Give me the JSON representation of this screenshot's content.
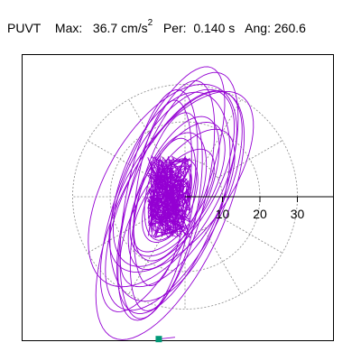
{
  "header": {
    "station": "PUVT",
    "max_label": "Max:",
    "max_value": "36.7",
    "max_unit": "cm/s",
    "max_unit_exp": "2",
    "per_label": "Per:",
    "per_value": "0.140 s",
    "ang_label": "Ang:",
    "ang_value": "260.6"
  },
  "chart_data": {
    "type": "scatter",
    "title": "",
    "xlabel": "",
    "ylabel": "",
    "polar_rings": [
      10,
      20,
      30
    ],
    "ring_labels": [
      "10",
      "20",
      "30"
    ],
    "radial_spokes_deg": [
      0,
      30,
      60,
      90,
      120,
      150,
      180,
      210,
      240,
      270,
      300,
      330
    ],
    "orientation_deg": 260.6,
    "max_amplitude": 36.7,
    "ellipses": [
      {
        "a": 36.0,
        "b": 14.0,
        "tilt": 65,
        "cx": -4.0,
        "cy": -5.0
      },
      {
        "a": 34.0,
        "b": 12.0,
        "tilt": 70,
        "cx": -2.0,
        "cy": 1.0
      },
      {
        "a": 30.0,
        "b": 15.0,
        "tilt": 60,
        "cx": -6.0,
        "cy": 3.0
      },
      {
        "a": 33.0,
        "b": 10.0,
        "tilt": 75,
        "cx": -5.0,
        "cy": -1.0
      },
      {
        "a": 28.0,
        "b": 13.0,
        "tilt": 55,
        "cx": -1.0,
        "cy": 4.0
      },
      {
        "a": 31.0,
        "b": 9.0,
        "tilt": 80,
        "cx": -7.0,
        "cy": -2.0
      },
      {
        "a": 26.0,
        "b": 12.0,
        "tilt": 62,
        "cx": -3.0,
        "cy": 5.0
      },
      {
        "a": 35.0,
        "b": 11.0,
        "tilt": 68,
        "cx": -6.0,
        "cy": 2.0
      },
      {
        "a": 24.0,
        "b": 10.0,
        "tilt": 58,
        "cx": -2.0,
        "cy": -3.0
      },
      {
        "a": 29.0,
        "b": 14.0,
        "tilt": 72,
        "cx": -4.0,
        "cy": 0.0
      },
      {
        "a": 22.0,
        "b": 9.0,
        "tilt": 66,
        "cx": -3.0,
        "cy": 1.0
      },
      {
        "a": 27.0,
        "b": 8.0,
        "tilt": 78,
        "cx": -5.0,
        "cy": -4.0
      },
      {
        "a": 20.0,
        "b": 9.0,
        "tilt": 60,
        "cx": -2.0,
        "cy": 2.0
      },
      {
        "a": 32.0,
        "b": 13.0,
        "tilt": 64,
        "cx": -3.0,
        "cy": -1.0
      },
      {
        "a": 18.0,
        "b": 8.0,
        "tilt": 70,
        "cx": -4.0,
        "cy": 0.0
      },
      {
        "a": 25.0,
        "b": 7.0,
        "tilt": 82,
        "cx": -6.0,
        "cy": 1.0
      },
      {
        "a": 16.0,
        "b": 7.0,
        "tilt": 55,
        "cx": -3.0,
        "cy": -1.0
      },
      {
        "a": 14.0,
        "b": 6.0,
        "tilt": 75,
        "cx": -4.0,
        "cy": 2.0
      },
      {
        "a": 12.0,
        "b": 6.0,
        "tilt": 65,
        "cx": -4.0,
        "cy": -1.0
      },
      {
        "a": 10.0,
        "b": 5.0,
        "tilt": 70,
        "cx": -4.0,
        "cy": 0.0
      },
      {
        "a": 8.0,
        "b": 4.0,
        "tilt": 60,
        "cx": -4.0,
        "cy": 1.0
      },
      {
        "a": 6.0,
        "b": 3.0,
        "tilt": 72,
        "cx": -4.0,
        "cy": 0.0
      },
      {
        "a": 5.0,
        "b": 3.0,
        "tilt": 50,
        "cx": -5.0,
        "cy": 0.0
      },
      {
        "a": 4.0,
        "b": 2.0,
        "tilt": 80,
        "cx": -4.0,
        "cy": -1.0
      },
      {
        "a": 3.0,
        "b": 2.0,
        "tilt": 60,
        "cx": -4.0,
        "cy": 0.0
      }
    ],
    "start_marker": [
      -7.0,
      -38.0
    ],
    "colors": {
      "trace": "#9400d3",
      "marker": "#009977",
      "grid": "#888888",
      "axis": "#000000"
    }
  }
}
